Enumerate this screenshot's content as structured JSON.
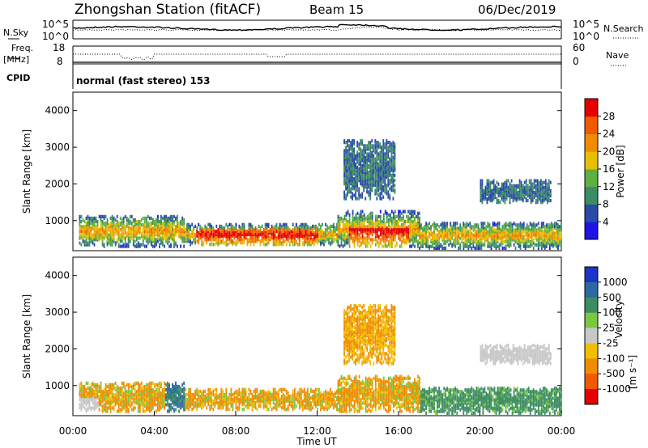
{
  "header": {
    "title": "Zhongshan Station (fitACF)",
    "beam": "Beam 15",
    "date": "06/Dec/2019"
  },
  "noise_panel": {
    "left_label": "N.Sky",
    "left_ticks": [
      "10^5",
      "10^0"
    ],
    "right_ticks": [
      "10^5",
      "10^0"
    ],
    "right_label": "N.Search"
  },
  "freq_panel": {
    "left_label_1": "Freq.",
    "left_label_2": "[MHz]",
    "left_ticks": [
      "18",
      "8"
    ],
    "right_ticks": [
      "60",
      "0"
    ],
    "right_label": "Nave"
  },
  "cpid_panel": {
    "label": "CPID",
    "mode": "normal (fast stereo) 153"
  },
  "chart_data": [
    {
      "type": "heatmap",
      "panel": "power",
      "ylabel": "Slant Range [km]",
      "yticks": [
        1000,
        2000,
        3000,
        4000
      ],
      "ytick_labels": [
        "1000",
        "2000",
        "3000",
        "4000"
      ],
      "colorbar": {
        "label": "Power [dB]",
        "tick_labels": [
          "4",
          "8",
          "12",
          "16",
          "20",
          "24",
          "28"
        ],
        "colors": [
          "#1e14e6",
          "#2a4aa8",
          "#3c8c64",
          "#5fb040",
          "#e6c000",
          "#f08c00",
          "#f05a00",
          "#e60000"
        ]
      },
      "echo_regions": [
        {
          "t0": 0.3,
          "t1": 5.5,
          "r0": 300,
          "r1": 1150
        },
        {
          "t0": 5.5,
          "t1": 13.0,
          "r0": 350,
          "r1": 900
        },
        {
          "t0": 13.0,
          "t1": 17.0,
          "r0": 300,
          "r1": 1250
        },
        {
          "t0": 13.3,
          "t1": 15.8,
          "r0": 1600,
          "r1": 3200
        },
        {
          "t0": 17.0,
          "t1": 24.0,
          "r0": 250,
          "r1": 950
        },
        {
          "t0": 20.0,
          "t1": 23.5,
          "r0": 1500,
          "r1": 2100
        }
      ]
    },
    {
      "type": "heatmap",
      "panel": "velocity",
      "ylabel": "Slant Range [km]",
      "xlabel": "Time UT",
      "yticks": [
        1000,
        2000,
        3000,
        4000
      ],
      "ytick_labels": [
        "1000",
        "2000",
        "3000",
        "4000"
      ],
      "xticks": [
        "00:00",
        "04:00",
        "08:00",
        "12:00",
        "16:00",
        "20:00",
        "00:00"
      ],
      "colorbar": {
        "label": "Velocity",
        "unit": "[m s⁻¹]",
        "tick_labels": [
          "1000",
          "500",
          "100",
          "25",
          "-25",
          "-100",
          "-500",
          "-1000"
        ],
        "colors": [
          "#1e32c8",
          "#2a6aa0",
          "#3c8c64",
          "#78c840",
          "#c8c8c8",
          "#f0c000",
          "#f08c00",
          "#f05a00",
          "#e60000"
        ]
      },
      "echo_regions": [
        {
          "t0": 0.3,
          "t1": 5.5,
          "r0": 300,
          "r1": 1100
        },
        {
          "t0": 5.5,
          "t1": 13.0,
          "r0": 350,
          "r1": 900
        },
        {
          "t0": 13.0,
          "t1": 17.0,
          "r0": 300,
          "r1": 1250
        },
        {
          "t0": 13.3,
          "t1": 15.8,
          "r0": 1600,
          "r1": 3200
        },
        {
          "t0": 17.0,
          "t1": 24.0,
          "r0": 250,
          "r1": 950
        },
        {
          "t0": 20.0,
          "t1": 23.5,
          "r0": 1600,
          "r1": 2100
        }
      ],
      "time_range_hours": [
        0,
        24
      ],
      "range_km": [
        180,
        4500
      ]
    }
  ]
}
